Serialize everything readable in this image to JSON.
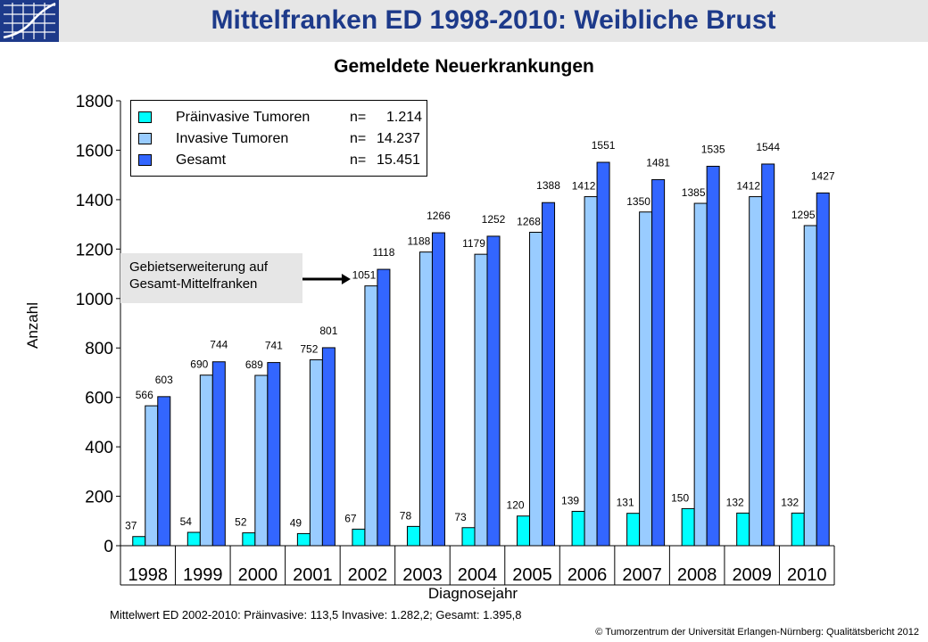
{
  "header": {
    "title": "Mittelfranken ED 1998-2010: Weibliche Brust",
    "logo_icon": "tumorzentrum-logo-icon"
  },
  "chart_data": {
    "type": "bar",
    "title": "Gemeldete Neuerkrankungen",
    "xlabel": "Diagnosejahr",
    "ylabel": "Anzahl",
    "ylim": [
      0,
      1800
    ],
    "yticks": [
      0,
      200,
      400,
      600,
      800,
      1000,
      1200,
      1400,
      1600,
      1800
    ],
    "categories": [
      "1998",
      "1999",
      "2000",
      "2001",
      "2002",
      "2003",
      "2004",
      "2005",
      "2006",
      "2007",
      "2008",
      "2009",
      "2010"
    ],
    "series": [
      {
        "name": "Präinvasive Tumoren",
        "color": "#00ffff",
        "values": [
          37,
          54,
          52,
          49,
          67,
          78,
          73,
          120,
          139,
          131,
          150,
          132,
          132
        ]
      },
      {
        "name": "Invasive Tumoren",
        "color": "#99ccff",
        "values": [
          566,
          690,
          689,
          752,
          1051,
          1188,
          1179,
          1268,
          1412,
          1350,
          1385,
          1412,
          1295
        ]
      },
      {
        "name": "Gesamt",
        "color": "#3366ff",
        "values": [
          603,
          744,
          741,
          801,
          1118,
          1266,
          1252,
          1388,
          1551,
          1481,
          1535,
          1544,
          1427
        ]
      }
    ],
    "legend": {
      "placement": "top-left",
      "entries": [
        {
          "label": "Präinvasive Tumoren",
          "n_label": "n=",
          "n_value": "1.214"
        },
        {
          "label": "Invasive Tumoren",
          "n_label": "n=",
          "n_value": "14.237"
        },
        {
          "label": "Gesamt",
          "n_label": "n=",
          "n_value": "15.451"
        }
      ]
    },
    "annotation": {
      "line1": "Gebietserweiterung auf",
      "line2": "Gesamt-Mittelfranken",
      "points_to": "2002"
    },
    "grid": false
  },
  "footnote": "Mittelwert ED 2002-2010: Präinvasive: 113,5  Invasive: 1.282,2;  Gesamt: 1.395,8",
  "copyright": "© Tumorzentrum   der Universität Erlangen-Nürnberg:  Qualitätsbericht 2012"
}
